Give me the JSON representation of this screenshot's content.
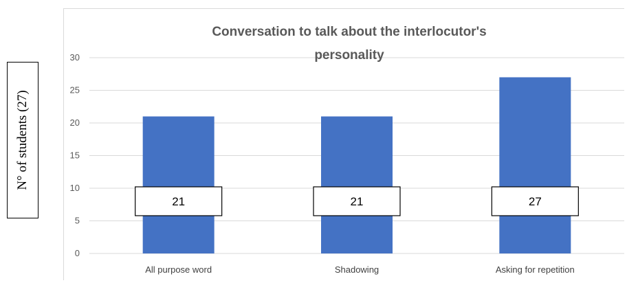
{
  "chart_data": {
    "type": "bar",
    "title_lines": [
      "Conversation to talk about the interlocutor's",
      "personality"
    ],
    "ylabel": "N° of students (27)",
    "xlabel": "",
    "categories": [
      "All purpose word",
      "Shadowing",
      "Asking for repetition"
    ],
    "values": [
      21,
      21,
      27
    ],
    "data_labels": [
      "21",
      "21",
      "27"
    ],
    "ylim": [
      0,
      30
    ],
    "yticks": [
      "0",
      "5",
      "10",
      "15",
      "20",
      "25",
      "30"
    ],
    "grid": true,
    "bar_color": "#4472C4",
    "grid_color": "#d9d9d9"
  }
}
